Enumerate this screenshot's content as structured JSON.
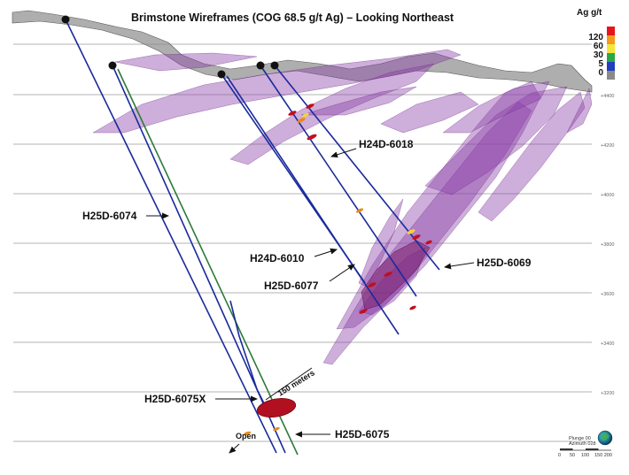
{
  "title": "Brimstone Wireframes (COG 68.5 g/t Ag) – Looking Northeast",
  "legend": {
    "title": "Ag g/t",
    "entries": [
      {
        "value": "120",
        "color": "#e8141b"
      },
      {
        "value": "60",
        "color": "#f39b1c"
      },
      {
        "value": "30",
        "color": "#f4e53a"
      },
      {
        "value": "5",
        "color": "#29a847"
      },
      {
        "value": "0",
        "color": "#1f3fbf"
      },
      {
        "value": "",
        "color": "#8a8a8a"
      }
    ]
  },
  "elevations": [
    "+4400",
    "+4200",
    "+4000",
    "+3800",
    "+3600",
    "+3400",
    "+3200"
  ],
  "holes": {
    "h25d_6074": "H25D-6074",
    "h24d_6018": "H24D-6018",
    "h24d_6010": "H24D-6010",
    "h25d_6077": "H25D-6077",
    "h25d_6069": "H25D-6069",
    "h25d_6075x": "H25D-6075X",
    "h25d_6075": "H25D-6075"
  },
  "annotations": {
    "scale_bar": "150 meters",
    "open": "Open"
  },
  "orientation": {
    "plunge": "Plunge 00",
    "azimuth": "Azimuth 028",
    "scale_ticks": [
      "0",
      "50",
      "100",
      "150 200"
    ]
  },
  "colors": {
    "drillhole": "#1a2a9c",
    "wireframe": "#8a3fa8",
    "topography": "#8c8c8c",
    "intercept": "#b01020"
  }
}
